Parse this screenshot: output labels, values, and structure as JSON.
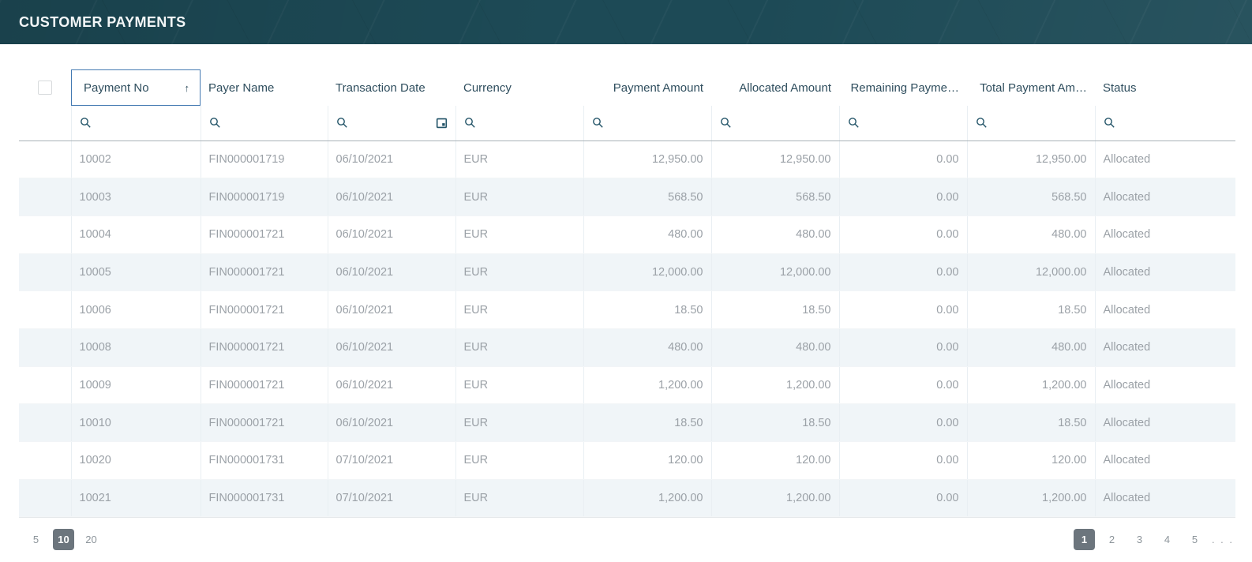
{
  "header": {
    "title": "CUSTOMER PAYMENTS"
  },
  "theme": {
    "banner_bg": "#1d4a56",
    "focus_border": "#4379b2",
    "header_text": "#2f4e5e",
    "cell_text": "#9ba1a7",
    "stripe_bg": "#f0f5f8",
    "icon_color": "#235468",
    "pager_selected_bg": "#6c757d"
  },
  "icons": {
    "sort_ascending": "↑"
  },
  "grid": {
    "columns": [
      {
        "key": "payment_no",
        "label": "Payment No",
        "align": "left",
        "sort": "asc",
        "filter_icons": [
          "search"
        ]
      },
      {
        "key": "payer_name",
        "label": "Payer Name",
        "align": "left",
        "filter_icons": [
          "search"
        ]
      },
      {
        "key": "transaction_date",
        "label": "Transaction Date",
        "align": "left",
        "filter_icons": [
          "search",
          "calendar"
        ]
      },
      {
        "key": "currency",
        "label": "Currency",
        "align": "left",
        "filter_icons": [
          "search"
        ]
      },
      {
        "key": "payment_amount",
        "label": "Payment Amount",
        "align": "right",
        "filter_icons": [
          "search"
        ]
      },
      {
        "key": "allocated_amount",
        "label": "Allocated Amount",
        "align": "right",
        "filter_icons": [
          "search"
        ]
      },
      {
        "key": "remaining_payment",
        "label": "Remaining Payme…",
        "align": "right",
        "filter_icons": [
          "search"
        ]
      },
      {
        "key": "total_payment_amount",
        "label": "Total Payment Am…",
        "align": "right",
        "filter_icons": [
          "search"
        ]
      },
      {
        "key": "status",
        "label": "Status",
        "align": "left",
        "filter_icons": [
          "search"
        ]
      }
    ],
    "rows": [
      [
        "10002",
        "FIN000001719",
        "06/10/2021",
        "EUR",
        "12,950.00",
        "12,950.00",
        "0.00",
        "12,950.00",
        "Allocated"
      ],
      [
        "10003",
        "FIN000001719",
        "06/10/2021",
        "EUR",
        "568.50",
        "568.50",
        "0.00",
        "568.50",
        "Allocated"
      ],
      [
        "10004",
        "FIN000001721",
        "06/10/2021",
        "EUR",
        "480.00",
        "480.00",
        "0.00",
        "480.00",
        "Allocated"
      ],
      [
        "10005",
        "FIN000001721",
        "06/10/2021",
        "EUR",
        "12,000.00",
        "12,000.00",
        "0.00",
        "12,000.00",
        "Allocated"
      ],
      [
        "10006",
        "FIN000001721",
        "06/10/2021",
        "EUR",
        "18.50",
        "18.50",
        "0.00",
        "18.50",
        "Allocated"
      ],
      [
        "10008",
        "FIN000001721",
        "06/10/2021",
        "EUR",
        "480.00",
        "480.00",
        "0.00",
        "480.00",
        "Allocated"
      ],
      [
        "10009",
        "FIN000001721",
        "06/10/2021",
        "EUR",
        "1,200.00",
        "1,200.00",
        "0.00",
        "1,200.00",
        "Allocated"
      ],
      [
        "10010",
        "FIN000001721",
        "06/10/2021",
        "EUR",
        "18.50",
        "18.50",
        "0.00",
        "18.50",
        "Allocated"
      ],
      [
        "10020",
        "FIN000001731",
        "07/10/2021",
        "EUR",
        "120.00",
        "120.00",
        "0.00",
        "120.00",
        "Allocated"
      ],
      [
        "10021",
        "FIN000001731",
        "07/10/2021",
        "EUR",
        "1,200.00",
        "1,200.00",
        "0.00",
        "1,200.00",
        "Allocated"
      ]
    ]
  },
  "pager": {
    "page_sizes": [
      "5",
      "10",
      "20"
    ],
    "selected_page_size": "10",
    "pages": [
      "1",
      "2",
      "3",
      "4",
      "5"
    ],
    "selected_page": "1",
    "ellipsis": ". . ."
  }
}
